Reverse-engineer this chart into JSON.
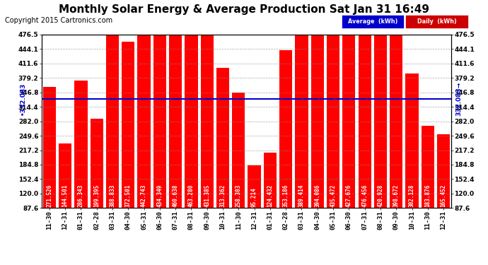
{
  "title": "Monthly Solar Energy & Average Production Sat Jan 31 16:49",
  "copyright": "Copyright 2015 Cartronics.com",
  "average_value": 332.083,
  "categories": [
    "11-30",
    "12-31",
    "01-31",
    "02-28",
    "03-31",
    "04-30",
    "05-31",
    "06-30",
    "07-31",
    "08-31",
    "09-30",
    "10-31",
    "11-30",
    "12-31",
    "01-31",
    "02-28",
    "03-31",
    "04-30",
    "05-31",
    "06-30",
    "07-31",
    "08-31",
    "09-30",
    "10-31",
    "11-30",
    "12-31"
  ],
  "values": [
    271.526,
    144.501,
    286.343,
    199.395,
    388.833,
    372.501,
    442.743,
    434.349,
    460.638,
    463.28,
    431.385,
    313.362,
    258.303,
    95.214,
    124.432,
    353.186,
    389.414,
    394.086,
    435.472,
    427.676,
    476.456,
    420.928,
    398.672,
    302.128,
    183.876,
    165.452
  ],
  "bar_color": "#ff0000",
  "average_line_color": "#0000cc",
  "background_color": "#ffffff",
  "plot_bg_color": "#ffffff",
  "grid_color": "#888888",
  "yticks": [
    87.6,
    120.0,
    152.4,
    184.8,
    217.2,
    249.6,
    282.0,
    314.4,
    346.8,
    379.2,
    411.6,
    444.1,
    476.5
  ],
  "legend_avg_label": "Average  (kWh)",
  "legend_daily_label": "Daily  (kWh)",
  "legend_avg_bg": "#0000cc",
  "legend_daily_bg": "#cc0000",
  "left_annotation": "•332.083",
  "right_annotation": "332.083→",
  "ylim_low": 87.6,
  "ylim_high": 476.5,
  "font_size_title": 11,
  "font_size_tick": 6.5,
  "font_size_bar_label": 5.5,
  "font_size_copyright": 7,
  "font_size_annotation": 6.5
}
